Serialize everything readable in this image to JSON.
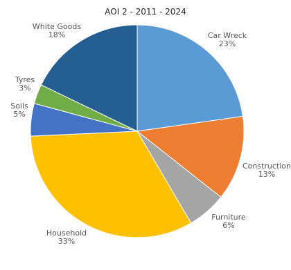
{
  "chart_data": {
    "type": "pie",
    "title": "AOI 2 - 2011 - 2024",
    "start_angle_deg": 0,
    "direction": "clockwise",
    "slices": [
      {
        "label": "Car Wreck",
        "value": 23,
        "value_label": "23%",
        "color": "#5b9bd5"
      },
      {
        "label": "Construction",
        "value": 13,
        "value_label": "13%",
        "color": "#ed7d31"
      },
      {
        "label": "Furniture",
        "value": 6,
        "value_label": "6%",
        "color": "#a5a5a5"
      },
      {
        "label": "Household",
        "value": 33,
        "value_label": "33%",
        "color": "#ffc000"
      },
      {
        "label": "Soils",
        "value": 5,
        "value_label": "5%",
        "color": "#4472c4"
      },
      {
        "label": "Tyres",
        "value": 3,
        "value_label": "3%",
        "color": "#70ad47"
      },
      {
        "label": "White Goods",
        "value": 18,
        "value_label": "18%",
        "color": "#255e91"
      }
    ]
  }
}
